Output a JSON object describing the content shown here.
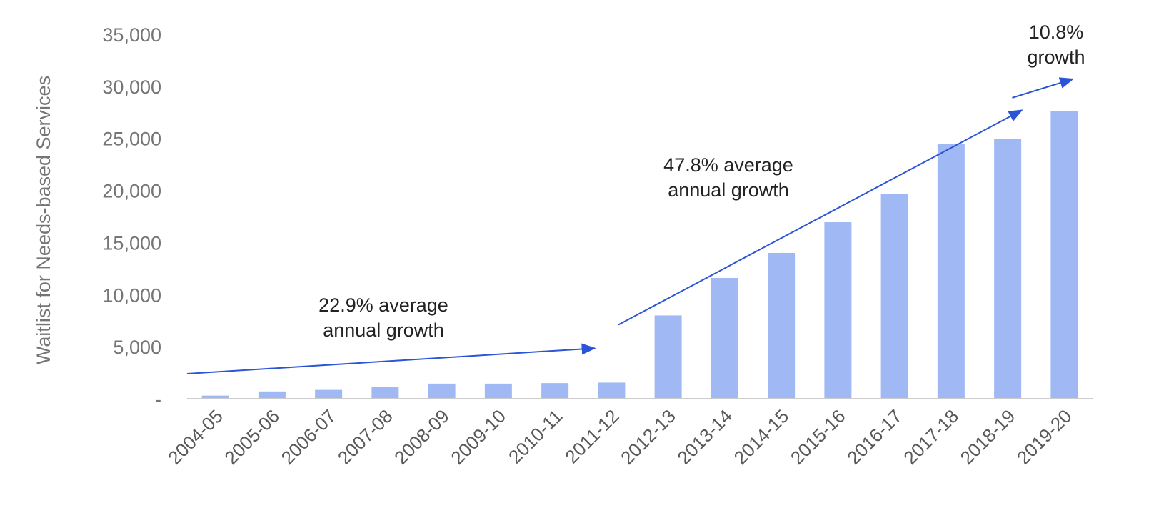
{
  "chart_data": {
    "type": "bar",
    "ylabel": "Waitlist for Needs-based Services",
    "xlabel": "",
    "ylim": [
      0,
      35000
    ],
    "yticks": [
      {
        "value": 0,
        "label": "-"
      },
      {
        "value": 5000,
        "label": "5,000"
      },
      {
        "value": 10000,
        "label": "10,000"
      },
      {
        "value": 15000,
        "label": "15,000"
      },
      {
        "value": 20000,
        "label": "20,000"
      },
      {
        "value": 25000,
        "label": "25,000"
      },
      {
        "value": 30000,
        "label": "30,000"
      },
      {
        "value": 35000,
        "label": "35,000"
      }
    ],
    "categories": [
      "2004-05",
      "2005-06",
      "2006-07",
      "2007-08",
      "2008-09",
      "2009-10",
      "2010-11",
      "2011-12",
      "2012-13",
      "2013-14",
      "2014-15",
      "2015-16",
      "2016-17",
      "2017-18",
      "2018-19",
      "2019-20"
    ],
    "values": [
      300,
      700,
      850,
      1100,
      1450,
      1450,
      1500,
      1550,
      8000,
      11600,
      14000,
      16950,
      19650,
      24450,
      24950,
      27600
    ],
    "grid": false,
    "legend": "none",
    "colors": {
      "bar": "#a0b9f5",
      "arrow": "#2b55d6",
      "axis": "#cccccc"
    },
    "annotations": [
      {
        "id": "early",
        "lines": [
          "22.9% average",
          "annual growth"
        ],
        "arrow_from": [
          "2004-05",
          2400
        ],
        "arrow_to": [
          "2011-12",
          4850
        ]
      },
      {
        "id": "mid",
        "lines": [
          "47.8% average",
          "annual growth"
        ],
        "arrow_from": [
          "2011-12",
          7100
        ],
        "arrow_to": [
          "2018-19",
          27700
        ]
      },
      {
        "id": "late",
        "lines": [
          "10.8%",
          "growth"
        ],
        "arrow_from": [
          "2018-19",
          28900
        ],
        "arrow_to": [
          "2019-20",
          30700
        ]
      }
    ]
  }
}
